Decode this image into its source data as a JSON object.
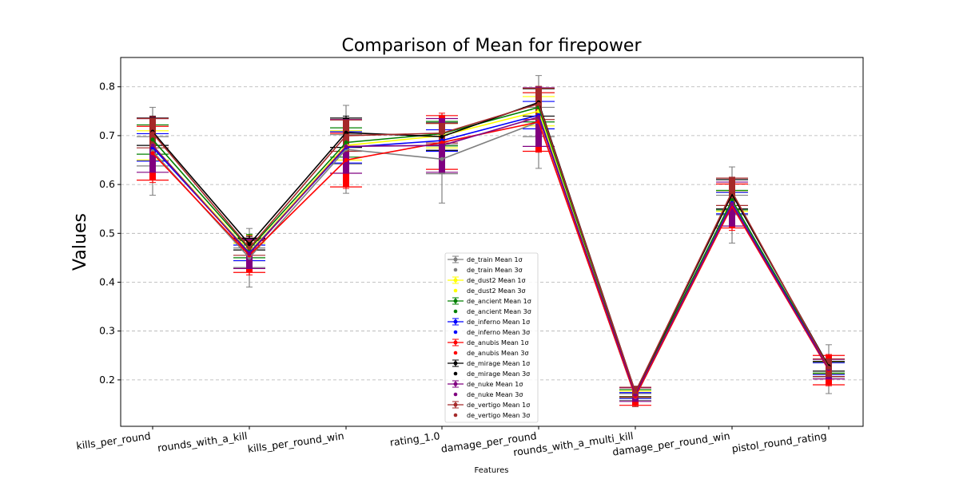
{
  "chart_data": {
    "type": "line",
    "title": "Comparison of Mean for firepower",
    "xlabel": "Features",
    "ylabel": "Values",
    "ylim": [
      0.105,
      0.86
    ],
    "yticks": [
      0.2,
      0.3,
      0.4,
      0.5,
      0.6,
      0.7,
      0.8
    ],
    "ytick_labels": [
      "0.2",
      "0.3",
      "0.4",
      "0.5",
      "0.6",
      "0.7",
      "0.8"
    ],
    "grid": "y-dashed",
    "legend_position": "lower-center",
    "categories": [
      "kills_per_round",
      "rounds_with_a_kill",
      "kills_per_round_win",
      "rating_1.0",
      "damage_per_round",
      "rounds_with_a_multi_kill",
      "damage_per_round_win",
      "pistol_round_rating"
    ],
    "series": [
      {
        "name": "de_train",
        "color": "#808080",
        "values": [
          0.668,
          0.45,
          0.672,
          0.652,
          0.728,
          0.165,
          0.558,
          0.222
        ],
        "err1": [
          0.03,
          0.02,
          0.03,
          0.03,
          0.03,
          0.007,
          0.02,
          0.016
        ],
        "err3": [
          0.09,
          0.06,
          0.09,
          0.09,
          0.095,
          0.02,
          0.078,
          0.05
        ]
      },
      {
        "name": "de_dust2",
        "color": "#ffff00",
        "values": [
          0.68,
          0.462,
          0.68,
          0.7,
          0.75,
          0.17,
          0.565,
          0.225
        ],
        "err1": [
          0.03,
          0.018,
          0.03,
          0.025,
          0.03,
          0.007,
          0.02,
          0.012
        ],
        "err3": [
          0.05,
          0.035,
          0.045,
          0.04,
          0.045,
          0.015,
          0.035,
          0.018
        ]
      },
      {
        "name": "de_ancient",
        "color": "#008000",
        "values": [
          0.692,
          0.468,
          0.686,
          0.704,
          0.758,
          0.173,
          0.568,
          0.226
        ],
        "err1": [
          0.03,
          0.018,
          0.03,
          0.025,
          0.03,
          0.007,
          0.02,
          0.012
        ],
        "err3": [
          0.045,
          0.03,
          0.04,
          0.035,
          0.04,
          0.013,
          0.032,
          0.016
        ]
      },
      {
        "name": "de_inferno",
        "color": "#0000ff",
        "values": [
          0.676,
          0.46,
          0.676,
          0.69,
          0.742,
          0.168,
          0.562,
          0.223
        ],
        "err1": [
          0.028,
          0.016,
          0.032,
          0.022,
          0.028,
          0.006,
          0.022,
          0.012
        ],
        "err3": [
          0.04,
          0.028,
          0.04,
          0.032,
          0.035,
          0.011,
          0.03,
          0.015
        ]
      },
      {
        "name": "de_anubis",
        "color": "#ff0000",
        "values": [
          0.664,
          0.455,
          0.65,
          0.686,
          0.728,
          0.166,
          0.556,
          0.22
        ],
        "err1": [
          0.055,
          0.035,
          0.055,
          0.055,
          0.06,
          0.018,
          0.045,
          0.03
        ],
        "err3": [
          0.06,
          0.04,
          0.058,
          0.06,
          0.062,
          0.02,
          0.05,
          0.032
        ]
      },
      {
        "name": "de_mirage",
        "color": "#000000",
        "values": [
          0.708,
          0.478,
          0.706,
          0.698,
          0.768,
          0.175,
          0.58,
          0.228
        ],
        "err1": [
          0.028,
          0.012,
          0.03,
          0.028,
          0.028,
          0.01,
          0.03,
          0.01
        ],
        "err3": [
          0.032,
          0.016,
          0.034,
          0.03,
          0.032,
          0.012,
          0.034,
          0.012
        ]
      },
      {
        "name": "de_nuke",
        "color": "#800080",
        "values": [
          0.68,
          0.458,
          0.678,
          0.68,
          0.738,
          0.17,
          0.56,
          0.222
        ],
        "err1": [
          0.055,
          0.03,
          0.055,
          0.055,
          0.06,
          0.014,
          0.045,
          0.02
        ],
        "err3": [
          0.058,
          0.032,
          0.058,
          0.058,
          0.062,
          0.016,
          0.048,
          0.022
        ]
      },
      {
        "name": "de_vertigo",
        "color": "#a52a2a",
        "values": [
          0.705,
          0.47,
          0.7,
          0.705,
          0.765,
          0.175,
          0.585,
          0.225
        ],
        "err1": [
          0.03,
          0.015,
          0.032,
          0.02,
          0.032,
          0.01,
          0.028,
          0.018
        ],
        "err3": [
          0.034,
          0.018,
          0.036,
          0.024,
          0.036,
          0.012,
          0.03,
          0.02
        ]
      }
    ],
    "legend_labels": {
      "one_sigma": "Mean 1σ",
      "three_sigma": "Mean 3σ"
    }
  }
}
